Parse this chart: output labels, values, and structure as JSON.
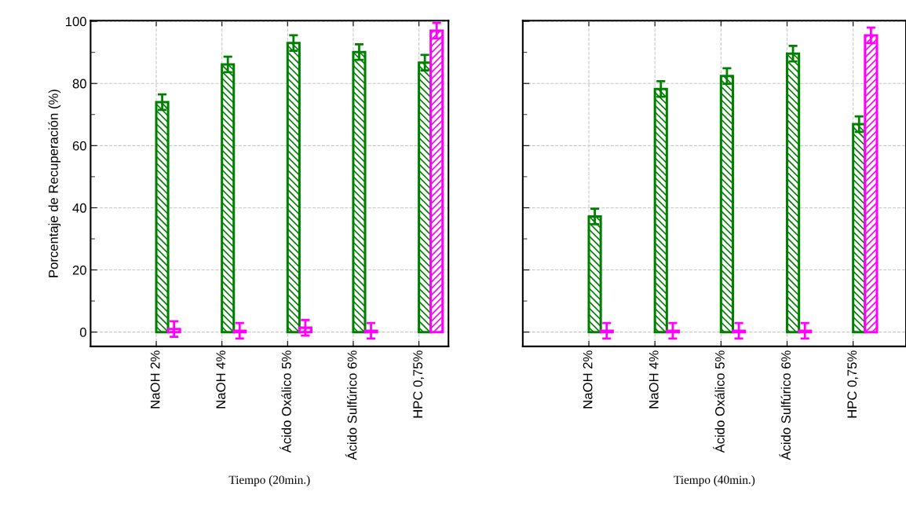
{
  "chart_data": [
    {
      "type": "bar",
      "xlabel": "Tiempo (20min.)",
      "ylabel": "Porcentaje de Recuperación (%)",
      "categories": [
        "NaOH 2%",
        "NaOH 4%",
        "Ácido Oxálico 5%",
        "Ácido Sulfúrico 6%",
        "HPC 0,75%"
      ],
      "series": [
        {
          "color": "#008000",
          "values": [
            74.0,
            86.1,
            93.0,
            90.1,
            86.7
          ],
          "errors": [
            2.5,
            2.5,
            2.5,
            2.5,
            2.5
          ]
        },
        {
          "color": "#ff00ff",
          "values": [
            1.0,
            0.4,
            1.4,
            0.4,
            97.0
          ],
          "errors": [
            2.5,
            2.5,
            2.5,
            2.5,
            2.5
          ]
        }
      ],
      "ylim": [
        -4.6,
        100.2
      ],
      "yticks": [
        0,
        {
          "value": 10,
          "label": null
        },
        20,
        {
          "value": 30,
          "label": null
        },
        40,
        {
          "value": 50,
          "label": null
        },
        60,
        {
          "value": 70,
          "label": null
        },
        80,
        {
          "value": 90,
          "label": null
        },
        100
      ],
      "grid": true
    },
    {
      "type": "bar",
      "xlabel": "Tiempo (40min.)",
      "categories": [
        "NaOH 2%",
        "NaOH 4%",
        "Ácido Oxálico 5%",
        "Ácido Sulfúrico 6%",
        "HPC 0,75%"
      ],
      "series": [
        {
          "color": "#008000",
          "values": [
            37.2,
            78.2,
            82.4,
            89.6,
            66.9
          ],
          "errors": [
            2.5,
            2.5,
            2.5,
            2.5,
            2.5
          ]
        },
        {
          "color": "#ff00ff",
          "values": [
            0.4,
            0.4,
            0.4,
            0.4,
            95.5
          ],
          "errors": [
            2.5,
            2.5,
            2.5,
            2.5,
            2.5
          ]
        }
      ],
      "ylim": [
        -4.6,
        100.2
      ],
      "yticks": [
        0,
        {
          "value": 10,
          "label": null
        },
        20,
        {
          "value": 30,
          "label": null
        },
        40,
        {
          "value": 50,
          "label": null
        },
        60,
        {
          "value": 70,
          "label": null
        },
        80,
        {
          "value": 90,
          "label": null
        },
        100
      ],
      "grid": true,
      "tick_labels": "x"
    }
  ]
}
